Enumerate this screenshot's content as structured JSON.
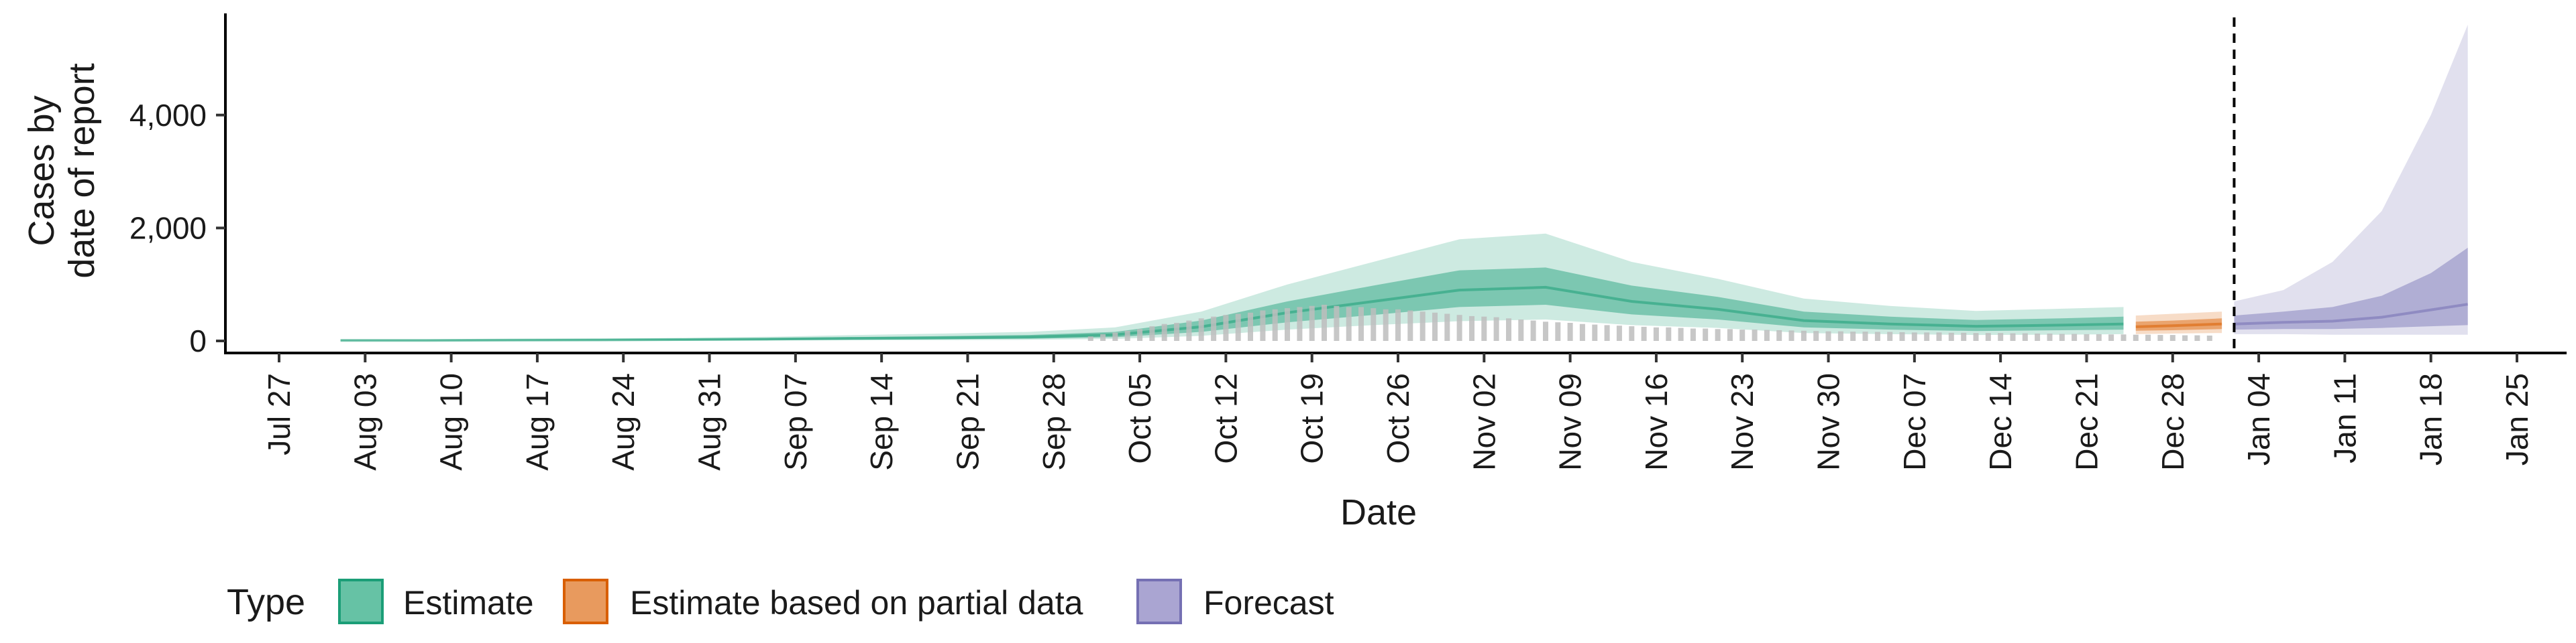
{
  "chart_data": {
    "type": "area",
    "xlabel": "Date",
    "ylabel": [
      "Cases by",
      "date of report"
    ],
    "x_range": [
      "2020-07-27",
      "2021-01-25"
    ],
    "ylim": [
      0,
      5800
    ],
    "y_ticks": [
      0,
      2000,
      4000
    ],
    "y_tick_labels": [
      "0",
      "2,000",
      "4,000"
    ],
    "x_tick_dates": [
      "2020-07-27",
      "2020-08-03",
      "2020-08-10",
      "2020-08-17",
      "2020-08-24",
      "2020-08-31",
      "2020-09-07",
      "2020-09-14",
      "2020-09-21",
      "2020-09-28",
      "2020-10-05",
      "2020-10-12",
      "2020-10-19",
      "2020-10-26",
      "2020-11-02",
      "2020-11-09",
      "2020-11-16",
      "2020-11-23",
      "2020-11-30",
      "2020-12-07",
      "2020-12-14",
      "2020-12-21",
      "2020-12-28",
      "2021-01-04",
      "2021-01-11",
      "2021-01-18",
      "2021-01-25"
    ],
    "x_tick_labels": [
      "Jul 27",
      "Aug 03",
      "Aug 10",
      "Aug 17",
      "Aug 24",
      "Aug 31",
      "Sep 07",
      "Sep 14",
      "Sep 21",
      "Sep 28",
      "Oct 05",
      "Oct 12",
      "Oct 19",
      "Oct 26",
      "Nov 02",
      "Nov 09",
      "Nov 16",
      "Nov 23",
      "Nov 30",
      "Dec 07",
      "Dec 14",
      "Dec 21",
      "Dec 28",
      "Jan 04",
      "Jan 11",
      "Jan 18",
      "Jan 25"
    ],
    "forecast_start": "2021-01-02",
    "grid": false,
    "legend": {
      "title": "Type",
      "position": "bottom",
      "entries": [
        {
          "label": "Estimate",
          "fill": "#66c2a5",
          "stroke": "#1b9e77"
        },
        {
          "label": "Estimate based on partial data",
          "fill": "#e89a5e",
          "stroke": "#d95f02"
        },
        {
          "label": "Forecast",
          "fill": "#aaa5d2",
          "stroke": "#7570b3"
        }
      ]
    },
    "colors": {
      "Estimate": "#1b9e77",
      "Estimate based on partial data": "#d95f02",
      "Forecast": "#7570b3",
      "bars": "#bdbdbd"
    },
    "series": [
      {
        "name": "Estimate",
        "points": [
          [
            "2020-08-01",
            8,
            4,
            14,
            2,
            20
          ],
          [
            "2020-08-08",
            10,
            5,
            16,
            3,
            22
          ],
          [
            "2020-08-15",
            14,
            7,
            22,
            4,
            30
          ],
          [
            "2020-08-22",
            18,
            9,
            28,
            5,
            40
          ],
          [
            "2020-08-29",
            24,
            12,
            36,
            6,
            55
          ],
          [
            "2020-09-05",
            32,
            16,
            50,
            8,
            75
          ],
          [
            "2020-09-12",
            45,
            25,
            70,
            12,
            105
          ],
          [
            "2020-09-19",
            55,
            30,
            85,
            15,
            130
          ],
          [
            "2020-09-26",
            70,
            40,
            105,
            20,
            160
          ],
          [
            "2020-10-03",
            110,
            65,
            160,
            35,
            240
          ],
          [
            "2020-10-10",
            250,
            160,
            360,
            90,
            520
          ],
          [
            "2020-10-17",
            500,
            330,
            700,
            200,
            1000
          ],
          [
            "2020-10-24",
            700,
            460,
            980,
            280,
            1400
          ],
          [
            "2020-10-31",
            900,
            600,
            1250,
            350,
            1800
          ],
          [
            "2020-11-07",
            950,
            640,
            1300,
            380,
            1900
          ],
          [
            "2020-11-14",
            700,
            470,
            980,
            280,
            1400
          ],
          [
            "2020-11-21",
            560,
            380,
            780,
            230,
            1100
          ],
          [
            "2020-11-28",
            360,
            240,
            520,
            140,
            750
          ],
          [
            "2020-12-05",
            300,
            200,
            430,
            120,
            620
          ],
          [
            "2020-12-12",
            260,
            175,
            370,
            105,
            530
          ],
          [
            "2020-12-19",
            280,
            190,
            400,
            110,
            570
          ],
          [
            "2020-12-24",
            300,
            200,
            430,
            120,
            600
          ]
        ]
      },
      {
        "name": "Estimate based on partial data",
        "points": [
          [
            "2020-12-25",
            250,
            180,
            340,
            120,
            450
          ],
          [
            "2020-12-28",
            270,
            190,
            360,
            130,
            480
          ],
          [
            "2021-01-01",
            300,
            210,
            400,
            140,
            520
          ]
        ]
      },
      {
        "name": "Forecast",
        "points": [
          [
            "2021-01-02",
            300,
            200,
            450,
            120,
            700
          ],
          [
            "2021-01-06",
            330,
            210,
            520,
            120,
            900
          ],
          [
            "2021-01-10",
            350,
            210,
            600,
            110,
            1400
          ],
          [
            "2021-01-14",
            420,
            230,
            800,
            110,
            2300
          ],
          [
            "2021-01-18",
            550,
            260,
            1200,
            110,
            4000
          ],
          [
            "2021-01-21",
            650,
            280,
            1650,
            110,
            5600
          ]
        ]
      }
    ],
    "reported_cases": {
      "start": "2020-10-01",
      "end": "2021-01-01",
      "values": [
        80,
        120,
        150,
        180,
        210,
        260,
        300,
        320,
        360,
        400,
        430,
        460,
        480,
        500,
        540,
        560,
        580,
        600,
        620,
        640,
        620,
        600,
        600,
        580,
        560,
        560,
        540,
        520,
        500,
        480,
        460,
        440,
        430,
        420,
        400,
        380,
        360,
        340,
        330,
        320,
        300,
        290,
        280,
        270,
        260,
        250,
        240,
        240,
        230,
        220,
        220,
        210,
        210,
        200,
        200,
        195,
        190,
        185,
        180,
        175,
        170,
        170,
        165,
        165,
        160,
        160,
        155,
        150,
        150,
        150,
        145,
        145,
        140,
        140,
        140,
        135,
        135,
        130,
        130,
        125,
        125,
        120,
        120,
        115,
        115,
        110,
        110,
        105,
        105,
        100,
        100,
        95
      ]
    }
  }
}
